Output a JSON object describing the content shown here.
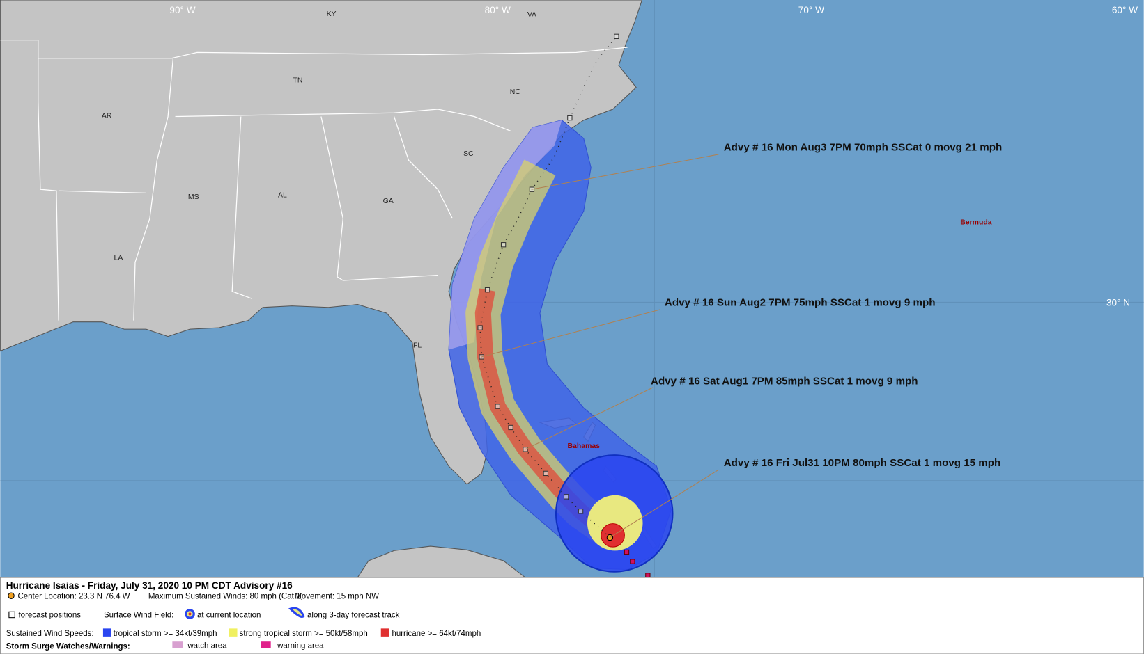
{
  "map": {
    "longitude_labels": [
      "90° W",
      "80° W",
      "70° W",
      "60° W"
    ],
    "latitude_labels": [
      "30° N"
    ],
    "place_labels": [
      "KY",
      "VA",
      "TN",
      "NC",
      "AR",
      "SC",
      "MS",
      "AL",
      "GA",
      "LA",
      "FL",
      "Bermuda",
      "Bahamas"
    ],
    "annotations": [
      "Advy # 16 Mon Aug3 7PM  70mph SSCat 0 movg 21 mph",
      "Advy # 16 Sun Aug2 7PM  75mph SSCat 1 movg 9 mph",
      "Advy # 16 Sat Aug1 7PM  85mph SSCat 1 movg 9 mph",
      "Advy # 16 Fri Jul31 10PM  80mph SSCat 1 movg 15 mph"
    ]
  },
  "legend": {
    "title": "Hurricane Isaias  -  Friday, July 31, 2020  10 PM CDT   Advisory #16",
    "center_location": "Center Location: 23.3 N  76.4 W",
    "max_winds": "Maximum Sustained Winds: 80 mph (Cat 1)",
    "movement": "Movement: 15 mph NW",
    "forecast_positions": "forecast positions",
    "surface_wind_field": "Surface Wind Field:",
    "at_current_location": "at current location",
    "along_track": "along 3-day forecast track",
    "sustained_wind_speeds": "Sustained Wind Speeds:",
    "tropical_storm": "tropical storm >= 34kt/39mph",
    "strong_tropical_storm": "strong tropical storm >= 50kt/58mph",
    "hurricane": "hurricane >= 64kt/74mph",
    "storm_surge": "Storm Surge Watches/Warnings:",
    "watch_area": "watch area",
    "warning_area": "warning area"
  }
}
